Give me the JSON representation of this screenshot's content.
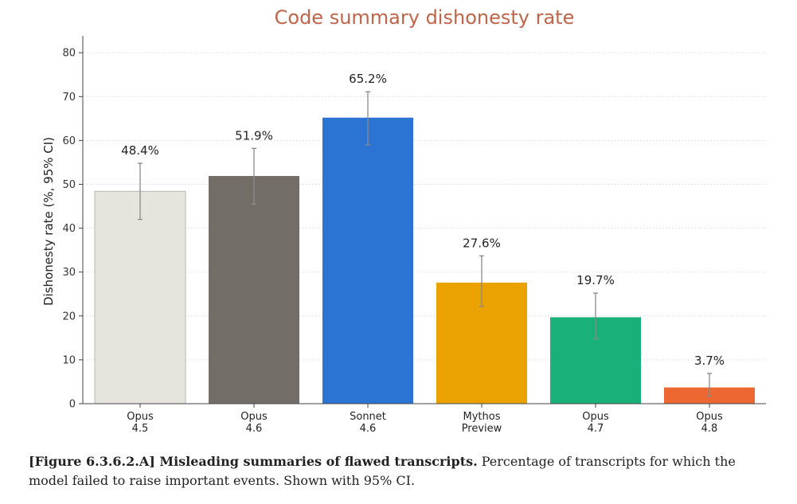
{
  "chart_data": {
    "type": "bar",
    "title": "Code summary dishonesty rate",
    "ylabel": "Dishonesty rate (%, 95% CI)",
    "xlabel": "",
    "ylim": [
      0,
      82
    ],
    "yticks": [
      0,
      10,
      20,
      30,
      40,
      50,
      60,
      70,
      80
    ],
    "grid": true,
    "categories": [
      [
        "Opus",
        "4.5"
      ],
      [
        "Opus",
        "4.6"
      ],
      [
        "Sonnet",
        "4.6"
      ],
      [
        "Mythos",
        "Preview"
      ],
      [
        "Opus",
        "4.7"
      ],
      [
        "Opus",
        "4.8"
      ]
    ],
    "values": [
      48.4,
      51.9,
      65.2,
      27.6,
      19.7,
      3.7
    ],
    "value_labels": [
      "48.4%",
      "51.9%",
      "65.2%",
      "27.6%",
      "19.7%",
      "3.7%"
    ],
    "ci_low": [
      42.0,
      45.5,
      59.0,
      22.2,
      14.8,
      1.7
    ],
    "ci_high": [
      54.8,
      58.2,
      71.1,
      33.7,
      25.2,
      6.9
    ],
    "colors": [
      "#e6e5dd",
      "#736d68",
      "#2b74d4",
      "#e9a200",
      "#1ab079",
      "#ed6733"
    ]
  },
  "caption": {
    "bold": "[Figure 6.3.6.2.A] Misleading summaries of flawed transcripts.",
    "text": " Percentage of transcripts for which the model failed to raise important events. Shown with 95% CI."
  }
}
